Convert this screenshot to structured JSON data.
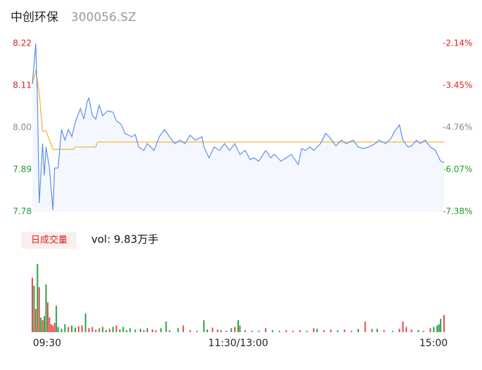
{
  "chart_data": {
    "type": "intraday",
    "title": "中创环保",
    "subtitle": "300056.SZ",
    "volume_badge": "日成交量",
    "volume_text": "vol: 9.83万手",
    "xlim": [
      0,
      240
    ],
    "xticks": [
      {
        "value": 0,
        "label": "09:30"
      },
      {
        "value": 120,
        "label": "11:30/13:00"
      },
      {
        "value": 240,
        "label": "15:00"
      }
    ],
    "ylim": [
      7.78,
      8.22
    ],
    "yticks": [
      {
        "value": 7.78,
        "label": "7.78"
      },
      {
        "value": 7.89,
        "label": "7.89"
      },
      {
        "value": 8.0,
        "label": "8.00"
      },
      {
        "value": 8.11,
        "label": "8.11"
      },
      {
        "value": 8.22,
        "label": "8.22"
      }
    ],
    "ytick_colors": [
      "#1a9a2e",
      "#1a9a2e",
      "#888888",
      "#e02020",
      "#e02020"
    ],
    "y2lim": [
      -7.38,
      -2.14
    ],
    "y2ticks": [
      {
        "value": -7.38,
        "label": "-7.38%"
      },
      {
        "value": -6.07,
        "label": "-6.07%"
      },
      {
        "value": -4.76,
        "label": "-4.76%"
      },
      {
        "value": -3.45,
        "label": "-3.45%"
      },
      {
        "value": -2.14,
        "label": "-2.14%"
      }
    ],
    "y2tick_colors": [
      "#1a9a2e",
      "#1a9a2e",
      "#888888",
      "#e02020",
      "#e02020"
    ],
    "price": {
      "color": "#5b8ff0",
      "fill": "#f4f7fe",
      "x": [
        0,
        2,
        3,
        4,
        6,
        7,
        8,
        10,
        12,
        13,
        15,
        17,
        19,
        21,
        23,
        25,
        28,
        30,
        32,
        33,
        35,
        37,
        39,
        41,
        44,
        47,
        49,
        52,
        54,
        58,
        60,
        62,
        65,
        67,
        71,
        74,
        77,
        80,
        83,
        86,
        89,
        92,
        95,
        99,
        100,
        103,
        106,
        109,
        112,
        115,
        118,
        121,
        124,
        127,
        129,
        132,
        136,
        139,
        141,
        145,
        148,
        151,
        155,
        157,
        159,
        162,
        164,
        168,
        171,
        173,
        177,
        180,
        183,
        187,
        190,
        193,
        196,
        200,
        202,
        206,
        209,
        211,
        214,
        216,
        219,
        221,
        224,
        226,
        229,
        232,
        235,
        238,
        240
      ],
      "values": [
        8.114,
        8.22,
        8.077,
        7.802,
        7.958,
        7.875,
        7.949,
        7.894,
        7.784,
        7.894,
        7.894,
        7.995,
        7.967,
        7.995,
        7.976,
        8.013,
        8.05,
        8.022,
        8.068,
        8.077,
        8.031,
        8.022,
        8.059,
        8.031,
        8.044,
        8.04,
        8.018,
        8.007,
        7.985,
        7.976,
        7.982,
        7.949,
        7.94,
        7.958,
        7.94,
        7.976,
        7.995,
        7.976,
        7.958,
        7.967,
        7.958,
        7.98,
        7.967,
        7.976,
        7.949,
        7.921,
        7.949,
        7.94,
        7.958,
        7.94,
        7.958,
        7.93,
        7.94,
        7.916,
        7.921,
        7.912,
        7.94,
        7.921,
        7.93,
        7.912,
        7.921,
        7.93,
        7.903,
        7.945,
        7.94,
        7.949,
        7.94,
        7.958,
        7.985,
        7.976,
        7.952,
        7.967,
        7.958,
        7.967,
        7.949,
        7.945,
        7.949,
        7.958,
        7.967,
        7.958,
        7.971,
        7.989,
        8.007,
        7.967,
        7.949,
        7.952,
        7.967,
        7.958,
        7.967,
        7.949,
        7.94,
        7.912,
        7.908
      ]
    },
    "average": {
      "color": "#f0b429",
      "x": [
        0,
        2,
        4,
        6,
        8,
        12,
        24,
        25,
        37,
        38,
        240
      ],
      "values": [
        8.114,
        8.15,
        8.09,
        7.99,
        7.991,
        7.943,
        7.943,
        7.949,
        7.949,
        7.962,
        7.962
      ]
    },
    "volume": {
      "vlim": [
        0,
        110
      ],
      "x": [
        0,
        1,
        2,
        3,
        4,
        5,
        6,
        7,
        8,
        9,
        10,
        11,
        12,
        13,
        14,
        15,
        17,
        19,
        21,
        23,
        25,
        27,
        29,
        31,
        33,
        35,
        37,
        39,
        41,
        43,
        45,
        47,
        49,
        51,
        53,
        55,
        57,
        60,
        63,
        65,
        67,
        70,
        72,
        75,
        78,
        80,
        85,
        88,
        92,
        96,
        100,
        102,
        105,
        108,
        110,
        113,
        116,
        118,
        120,
        121,
        124,
        128,
        132,
        136,
        140,
        144,
        148,
        152,
        156,
        160,
        164,
        166,
        170,
        174,
        178,
        182,
        186,
        190,
        194,
        198,
        201,
        205,
        210,
        214,
        216,
        218,
        221,
        225,
        228,
        232,
        234,
        236,
        237,
        238,
        240
      ],
      "values": [
        82,
        70,
        35,
        103,
        68,
        22,
        18,
        24,
        72,
        45,
        22,
        12,
        10,
        14,
        40,
        8,
        5,
        12,
        8,
        10,
        7,
        9,
        10,
        28,
        6,
        8,
        4,
        6,
        8,
        3,
        5,
        8,
        10,
        4,
        8,
        3,
        6,
        4,
        5,
        3,
        6,
        4,
        3,
        6,
        16,
        3,
        6,
        10,
        3,
        2,
        18,
        4,
        7,
        4,
        3,
        2,
        6,
        8,
        18,
        10,
        3,
        2,
        2,
        6,
        3,
        2,
        3,
        2,
        3,
        2,
        6,
        5,
        3,
        4,
        3,
        4,
        2,
        5,
        16,
        5,
        5,
        3,
        2,
        5,
        16,
        8,
        4,
        3,
        2,
        6,
        8,
        10,
        12,
        20,
        26
      ],
      "colors": [
        "r",
        "g",
        "r",
        "g",
        "r",
        "g",
        "r",
        "g",
        "g",
        "r",
        "r",
        "r",
        "r",
        "r",
        "g",
        "g",
        "g",
        "g",
        "r",
        "g",
        "g",
        "r",
        "r",
        "g",
        "r",
        "r",
        "g",
        "r",
        "g",
        "g",
        "r",
        "g",
        "r",
        "g",
        "g",
        "g",
        "g",
        "g",
        "g",
        "r",
        "g",
        "r",
        "r",
        "g",
        "g",
        "r",
        "g",
        "r",
        "r",
        "g",
        "g",
        "g",
        "r",
        "r",
        "g",
        "r",
        "g",
        "r",
        "g",
        "g",
        "r",
        "r",
        "g",
        "r",
        "g",
        "g",
        "r",
        "r",
        "r",
        "g",
        "r",
        "g",
        "r",
        "r",
        "g",
        "r",
        "r",
        "g",
        "r",
        "r",
        "g",
        "r",
        "g",
        "r",
        "r",
        "r",
        "r",
        "g",
        "r",
        "r",
        "g",
        "g",
        "g",
        "g",
        "r"
      ],
      "color_map": {
        "r": "#e84a4a",
        "g": "#2ea043"
      }
    }
  }
}
